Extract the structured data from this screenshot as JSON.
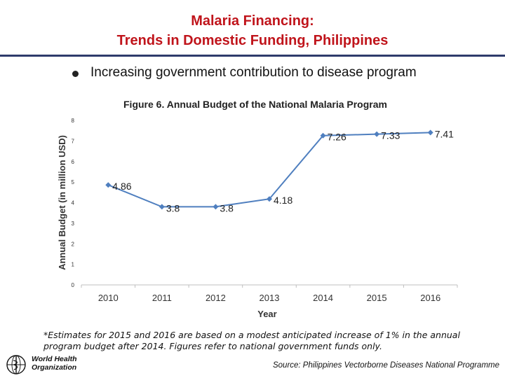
{
  "slide": {
    "title_line1": "Malaria Financing:",
    "title_line2": "Trends in Domestic Funding, Philippines",
    "bullet": "Increasing government contribution to disease program",
    "footnote": "*Estimates for 2015 and 2016 are based on a modest anticipated increase of 1% in the annual program budget after 2014. Figures refer to national government funds only.",
    "source": "Source: Philippines Vectorborne Diseases National Programme",
    "logo_text_line1": "World Health",
    "logo_text_line2": "Organization",
    "colors": {
      "title": "#c0141b",
      "rule": "#2e3b6b",
      "series": "#4f7fbf"
    }
  },
  "chart_data": {
    "type": "line",
    "title": "Figure 6. Annual Budget of the National Malaria Program",
    "xlabel": "Year",
    "ylabel": "Annual Budget (in million USD)",
    "categories": [
      "2010",
      "2011",
      "2012",
      "2013",
      "2014",
      "2015",
      "2016"
    ],
    "values": [
      4.86,
      3.8,
      3.8,
      4.18,
      7.26,
      7.33,
      7.41
    ],
    "data_labels": [
      "4.86",
      "3.8",
      "3.8",
      "4.18",
      "7.26",
      "7.33",
      "7.41"
    ],
    "yticks": [
      "0",
      "1",
      "2",
      "3",
      "4",
      "5",
      "6",
      "7",
      "8"
    ],
    "ylim": [
      0,
      8
    ],
    "grid": false,
    "legend": "none"
  }
}
